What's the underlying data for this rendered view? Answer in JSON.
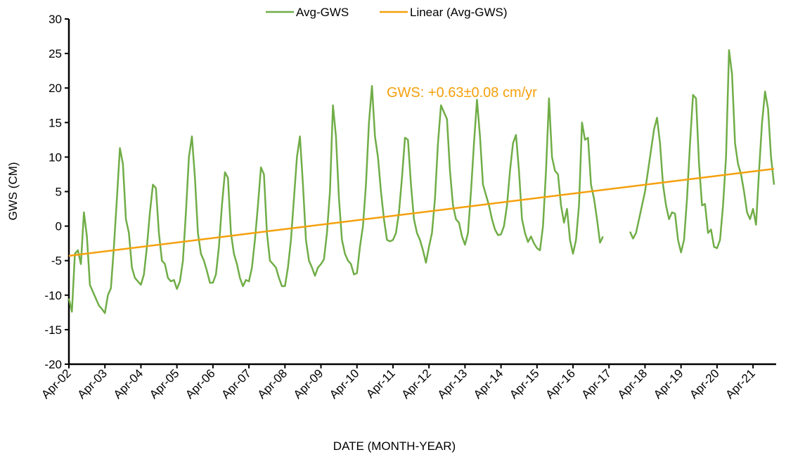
{
  "chart_data": {
    "type": "line",
    "xlabel": "DATE (MONTH-YEAR)",
    "ylabel": "GWS (CM)",
    "annotation": {
      "text": "GWS: +0.63±0.08 cm/yr",
      "color": "#f5a00c"
    },
    "xlim": [
      "Apr-02",
      "Nov-21"
    ],
    "xticks": [
      "Apr-02",
      "Apr-03",
      "Apr-04",
      "Apr-05",
      "Apr-06",
      "Apr-07",
      "Apr-08",
      "Apr-09",
      "Apr-10",
      "Apr-11",
      "Apr-12",
      "Apr-13",
      "Apr-14",
      "Apr-15",
      "Apr-16",
      "Apr-17",
      "Apr-18",
      "Apr-19",
      "Apr-20",
      "Apr-21"
    ],
    "ylim": [
      -20,
      30
    ],
    "yticks": [
      -20,
      -15,
      -10,
      -5,
      0,
      5,
      10,
      15,
      20,
      25,
      30
    ],
    "legend": "top",
    "series": [
      {
        "name": "Avg-GWS",
        "color": "#70ad47",
        "x": [
          "Apr-02",
          "May-02",
          "Jun-02",
          "Jul-02",
          "Aug-02",
          "Sep-02",
          "Oct-02",
          "Nov-02",
          "Dec-02",
          "Jan-03",
          "Feb-03",
          "Mar-03",
          "Apr-03",
          "May-03",
          "Jun-03",
          "Jul-03",
          "Aug-03",
          "Sep-03",
          "Oct-03",
          "Nov-03",
          "Dec-03",
          "Jan-04",
          "Feb-04",
          "Mar-04",
          "Apr-04",
          "May-04",
          "Jun-04",
          "Jul-04",
          "Aug-04",
          "Sep-04",
          "Oct-04",
          "Nov-04",
          "Dec-04",
          "Jan-05",
          "Feb-05",
          "Mar-05",
          "Apr-05",
          "May-05",
          "Jun-05",
          "Jul-05",
          "Aug-05",
          "Sep-05",
          "Oct-05",
          "Nov-05",
          "Dec-05",
          "Jan-06",
          "Feb-06",
          "Mar-06",
          "Apr-06",
          "May-06",
          "Jun-06",
          "Jul-06",
          "Aug-06",
          "Sep-06",
          "Oct-06",
          "Nov-06",
          "Dec-06",
          "Jan-07",
          "Feb-07",
          "Mar-07",
          "Apr-07",
          "May-07",
          "Jun-07",
          "Jul-07",
          "Aug-07",
          "Sep-07",
          "Oct-07",
          "Nov-07",
          "Dec-07",
          "Jan-08",
          "Feb-08",
          "Mar-08",
          "Apr-08",
          "May-08",
          "Jun-08",
          "Jul-08",
          "Aug-08",
          "Sep-08",
          "Oct-08",
          "Nov-08",
          "Dec-08",
          "Jan-09",
          "Feb-09",
          "Mar-09",
          "Apr-09",
          "May-09",
          "Jun-09",
          "Jul-09",
          "Aug-09",
          "Sep-09",
          "Oct-09",
          "Nov-09",
          "Dec-09",
          "Jan-10",
          "Feb-10",
          "Mar-10",
          "Apr-10",
          "May-10",
          "Jun-10",
          "Jul-10",
          "Aug-10",
          "Sep-10",
          "Oct-10",
          "Nov-10",
          "Dec-10",
          "Jan-11",
          "Feb-11",
          "Mar-11",
          "Apr-11",
          "May-11",
          "Jun-11",
          "Jul-11",
          "Aug-11",
          "Sep-11",
          "Oct-11",
          "Nov-11",
          "Dec-11",
          "Jan-12",
          "Feb-12",
          "Mar-12",
          "Apr-12",
          "May-12",
          "Jun-12",
          "Jul-12",
          "Aug-12",
          "Sep-12",
          "Oct-12",
          "Nov-12",
          "Dec-12",
          "Jan-13",
          "Feb-13",
          "Mar-13",
          "Apr-13",
          "May-13",
          "Jun-13",
          "Jul-13",
          "Aug-13",
          "Sep-13",
          "Oct-13",
          "Nov-13",
          "Dec-13",
          "Jan-14",
          "Feb-14",
          "Mar-14",
          "Apr-14",
          "May-14",
          "Jun-14",
          "Jul-14",
          "Aug-14",
          "Sep-14",
          "Oct-14",
          "Nov-14",
          "Dec-14",
          "Jan-15",
          "Feb-15",
          "Mar-15",
          "Apr-15",
          "May-15",
          "Jun-15",
          "Jul-15",
          "Aug-15",
          "Sep-15",
          "Oct-15",
          "Nov-15",
          "Dec-15",
          "Jan-16",
          "Feb-16",
          "Mar-16",
          "Apr-16",
          "May-16",
          "Jun-16",
          "Jul-16",
          "Aug-16",
          "Sep-16",
          "Oct-16",
          "Nov-16",
          "Dec-16",
          "Jan-17",
          "Feb-17",
          "Mar-17",
          "Apr-17",
          "May-17",
          "Jun-17",
          "Jul-17",
          "Aug-17",
          "Sep-17",
          "Oct-17",
          "Nov-17",
          "Dec-17",
          "Jan-18",
          "Feb-18",
          "Mar-18",
          "Apr-18",
          "May-18",
          "Jun-18",
          "Jul-18",
          "Aug-18",
          "Sep-18",
          "Oct-18",
          "Nov-18",
          "Dec-18",
          "Jan-19",
          "Feb-19",
          "Mar-19",
          "Apr-19",
          "May-19",
          "Jun-19",
          "Jul-19",
          "Aug-19",
          "Sep-19",
          "Oct-19",
          "Nov-19",
          "Dec-19",
          "Jan-20",
          "Feb-20",
          "Mar-20",
          "Apr-20",
          "May-20",
          "Jun-20",
          "Jul-20",
          "Aug-20",
          "Sep-20",
          "Oct-20",
          "Nov-20",
          "Dec-20",
          "Jan-21",
          "Feb-21",
          "Mar-21",
          "Apr-21",
          "May-21",
          "Jun-21",
          "Jul-21",
          "Aug-21",
          "Sep-21",
          "Oct-21",
          "Nov-21"
        ],
        "values": [
          -10.5,
          -12.4,
          -4,
          -3.5,
          -5.5,
          2,
          -1.5,
          -8.5,
          -9.5,
          -10.5,
          -11.5,
          -12,
          -12.6,
          -10,
          -9,
          -3,
          4,
          11.3,
          9,
          1,
          -1,
          -6,
          -7.5,
          -8,
          -8.5,
          -7,
          -3,
          2,
          6,
          5.5,
          -1,
          -5,
          -5.5,
          -7.5,
          -8,
          -7.8,
          -9.1,
          -8,
          -5,
          2,
          10,
          13,
          7,
          -1,
          -4,
          -5,
          -6.5,
          -8.2,
          -8.2,
          -7,
          -3,
          3,
          7.8,
          7,
          -1,
          -4,
          -5.5,
          -7.5,
          -8.7,
          -7.8,
          -8,
          -6,
          -2,
          3,
          8.5,
          7.5,
          -1,
          -5,
          -5.5,
          -6,
          -7.5,
          -8.7,
          -8.7,
          -6,
          -2,
          4,
          10,
          13,
          6,
          -2,
          -5,
          -6,
          -7.2,
          -6,
          -5.5,
          -4.8,
          -1,
          5,
          17.5,
          13,
          4,
          -2,
          -4,
          -5,
          -5.5,
          -7,
          -6.8,
          -3,
          0,
          6,
          15,
          20.3,
          13,
          10,
          5,
          1,
          -2,
          -2.2,
          -2,
          -1,
          2,
          7,
          12.8,
          12.5,
          6,
          1,
          -1,
          -2,
          -3.5,
          -5.3,
          -3,
          -1,
          4,
          12,
          17.5,
          16.5,
          15.5,
          8,
          3,
          1,
          0.5,
          -1.5,
          -2.7,
          -1,
          5,
          12,
          18.3,
          13,
          6,
          4.5,
          3,
          1,
          -0.5,
          -1.3,
          -1.2,
          0,
          3,
          8,
          12,
          13.2,
          8,
          1,
          -1,
          -2.3,
          -1.5,
          -2.5,
          -3.2,
          -3.5,
          0,
          8,
          18.5,
          10,
          8,
          7.5,
          3,
          0.5,
          2.5,
          -2,
          -4,
          -2,
          3,
          15,
          12.5,
          12.8,
          6,
          4,
          1,
          -2.4,
          -1.5,
          null,
          null,
          null,
          null,
          null,
          null,
          null,
          null,
          -0.8,
          -1.8,
          -1,
          1,
          3,
          5,
          8,
          11,
          14,
          15.7,
          12,
          6,
          3,
          1,
          2,
          1.8,
          -2,
          -3.8,
          -2,
          4,
          12,
          19,
          18.5,
          9,
          3,
          3.2,
          -1,
          -0.5,
          -3,
          -3.2,
          -2,
          3,
          10,
          25.5,
          22,
          12,
          9,
          7.5,
          5,
          2,
          1,
          2.5,
          0.2,
          8,
          15,
          19.5,
          17,
          10,
          6
        ]
      },
      {
        "name": "Linear (Avg-GWS)",
        "color": "#f5a00c",
        "x": [
          "Apr-02",
          "Nov-21"
        ],
        "values": [
          -4.3,
          8.3
        ]
      }
    ]
  }
}
